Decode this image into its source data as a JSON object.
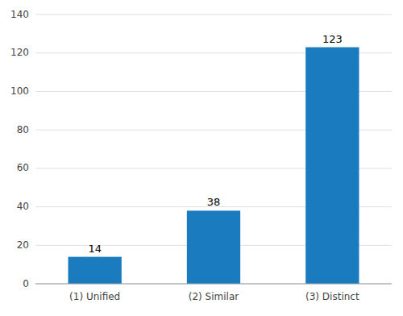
{
  "chart_data": {
    "type": "bar",
    "categories": [
      "(1) Unified",
      "(2) Similar",
      "(3) Distinct"
    ],
    "values": [
      14,
      38,
      123
    ],
    "color": "#1a7bbf",
    "ylim": [
      0,
      140
    ],
    "yticks": [
      0,
      20,
      40,
      60,
      80,
      100,
      120,
      140
    ],
    "grid": true,
    "data_labels": true
  }
}
